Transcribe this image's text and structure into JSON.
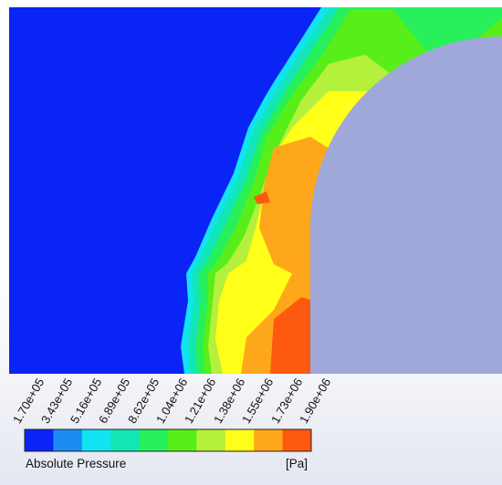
{
  "legend": {
    "title": "Absolute Pressure",
    "unit": "[Pa]",
    "ticks": [
      "1.70e+05",
      "3.43e+05",
      "5.16e+05",
      "6.89e+05",
      "8.62e+05",
      "1.04e+06",
      "1.21e+06",
      "1.38e+06",
      "1.55e+06",
      "1.73e+06",
      "1.90e+06"
    ],
    "colors": [
      "#0a24f5",
      "#1a8cf2",
      "#12e3f2",
      "#12e6b4",
      "#28f05a",
      "#58ee1a",
      "#b4f03c",
      "#ffff19",
      "#ffa71a",
      "#fe5a0f"
    ]
  },
  "field": {
    "colors": {
      "low": "#0a24f5",
      "band2": "#1a8cf2",
      "band3": "#12e3f2",
      "band4": "#12e6b4",
      "band5": "#28f05a",
      "band6": "#58ee1a",
      "band7": "#b4f03c",
      "band8": "#ffff19",
      "band9": "#ffa71a",
      "high": "#fe5a0f",
      "body": "#9fa8d8"
    }
  }
}
